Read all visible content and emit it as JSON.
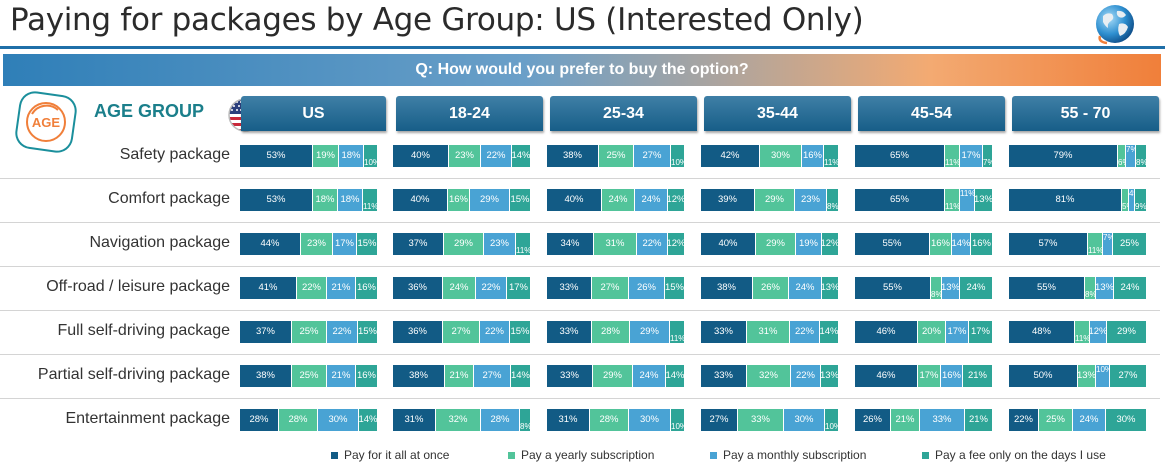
{
  "title": "Paying for packages by Age Group: US (Interested Only)",
  "question": "Q: How would you prefer to buy the option?",
  "age_label": "AGE GROUP",
  "logo_text": "AGE",
  "colors": {
    "pay_at_once": "#125b85",
    "yearly": "#52c49a",
    "monthly": "#49a3d4",
    "per_day": "#2ea597",
    "header": "#175e88"
  },
  "chart_data": {
    "type": "bar",
    "orientation": "horizontal",
    "stacked": true,
    "normalized": true,
    "title": "Paying for packages by Age Group: US (Interested Only)",
    "subtitle": "Q: How would you prefer to buy the option?",
    "legend_position": "bottom",
    "grid": false,
    "categories": [
      "Safety package",
      "Comfort package",
      "Navigation package",
      "Off-road / leisure package",
      "Full self-driving package",
      "Partial self-driving package",
      "Entertainment package"
    ],
    "legend": [
      "Pay for it all at once",
      "Pay a yearly subscription",
      "Pay a monthly subscription",
      "Pay a fee only on the days I use"
    ],
    "panels": [
      {
        "name": "US",
        "rows": [
          [
            53,
            19,
            18,
            10
          ],
          [
            53,
            18,
            18,
            11
          ],
          [
            44,
            23,
            17,
            15
          ],
          [
            41,
            22,
            21,
            16
          ],
          [
            37,
            25,
            22,
            15
          ],
          [
            38,
            25,
            21,
            16
          ],
          [
            28,
            28,
            30,
            14
          ]
        ]
      },
      {
        "name": "18-24",
        "rows": [
          [
            40,
            23,
            22,
            14
          ],
          [
            40,
            16,
            29,
            15
          ],
          [
            37,
            29,
            23,
            11
          ],
          [
            36,
            24,
            22,
            17
          ],
          [
            36,
            27,
            22,
            15
          ],
          [
            38,
            21,
            27,
            14
          ],
          [
            31,
            32,
            28,
            8
          ]
        ]
      },
      {
        "name": "25-34",
        "rows": [
          [
            38,
            25,
            27,
            10
          ],
          [
            40,
            24,
            24,
            12
          ],
          [
            34,
            31,
            22,
            12
          ],
          [
            33,
            27,
            26,
            15
          ],
          [
            33,
            28,
            29,
            11
          ],
          [
            33,
            29,
            24,
            14
          ],
          [
            31,
            28,
            30,
            10
          ]
        ]
      },
      {
        "name": "35-44",
        "rows": [
          [
            42,
            30,
            16,
            11
          ],
          [
            39,
            29,
            23,
            8
          ],
          [
            40,
            29,
            19,
            12
          ],
          [
            38,
            26,
            24,
            13
          ],
          [
            33,
            31,
            22,
            14
          ],
          [
            33,
            32,
            22,
            13
          ],
          [
            27,
            33,
            30,
            10
          ]
        ]
      },
      {
        "name": "45-54",
        "rows": [
          [
            65,
            11,
            17,
            7
          ],
          [
            65,
            11,
            11,
            13
          ],
          [
            55,
            16,
            14,
            16
          ],
          [
            55,
            8,
            13,
            24
          ],
          [
            46,
            20,
            17,
            17
          ],
          [
            46,
            17,
            16,
            21
          ],
          [
            26,
            21,
            33,
            21
          ]
        ]
      },
      {
        "name": "55 - 70",
        "rows": [
          [
            79,
            6,
            7,
            8
          ],
          [
            81,
            5,
            4,
            9
          ],
          [
            57,
            11,
            7,
            25
          ],
          [
            55,
            8,
            13,
            24
          ],
          [
            48,
            11,
            12,
            29
          ],
          [
            50,
            13,
            10,
            27
          ],
          [
            22,
            25,
            24,
            30
          ]
        ]
      }
    ]
  }
}
